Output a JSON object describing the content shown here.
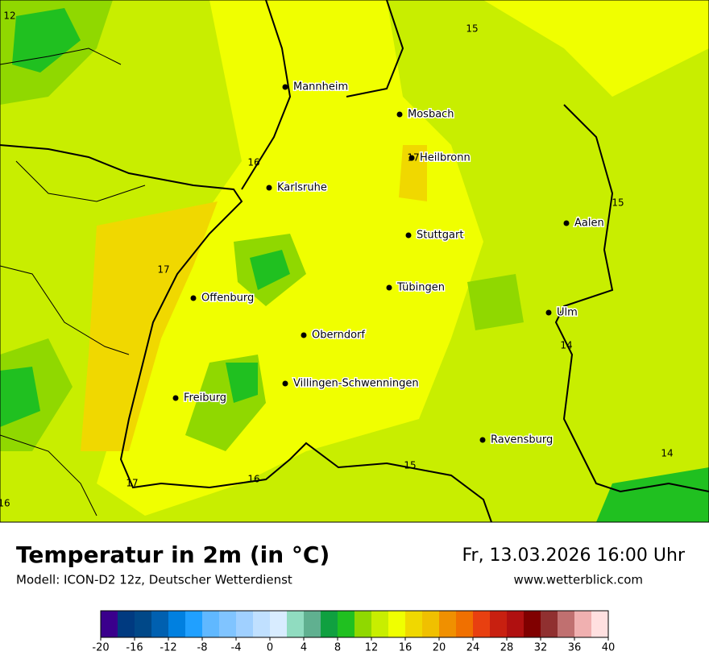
{
  "map": {
    "cities": [
      "Mannheim",
      "Mosbach",
      "Heilbronn",
      "Karlsruhe",
      "Aalen",
      "Stuttgart",
      "Tübingen",
      "Offenburg",
      "Ulm",
      "Oberndorf",
      "Villingen-Schwenningen",
      "Freiburg",
      "Ravensburg"
    ],
    "contour_labels": [
      12,
      15,
      16,
      17,
      15,
      17,
      14,
      15,
      14,
      17,
      16,
      16
    ]
  },
  "footer": {
    "title": "Temperatur in 2m (in °C)",
    "model": "Modell: ICON-D2 12z, Deutscher Wetterdienst",
    "datetime": "Fr, 13.03.2026 16:00 Uhr",
    "site": "www.wetterblick.com"
  },
  "legend": {
    "colors": [
      "#3a008c",
      "#003a80",
      "#004888",
      "#0060b0",
      "#0080e0",
      "#20a0ff",
      "#60b8ff",
      "#80c4ff",
      "#a0d0ff",
      "#c0e0ff",
      "#d8ecff",
      "#90dcc0",
      "#60b090",
      "#10a040",
      "#20c020",
      "#90d800",
      "#c8ee00",
      "#f0ff00",
      "#f0d800",
      "#f0c000",
      "#f09000",
      "#f07000",
      "#e84010",
      "#c82010",
      "#b01010",
      "#800000",
      "#903030",
      "#c07070",
      "#f0b0b0",
      "#ffe0e0"
    ],
    "ticks": [
      -20,
      -16,
      -12,
      -8,
      -4,
      0,
      4,
      8,
      12,
      16,
      20,
      24,
      28,
      32,
      36,
      40
    ]
  }
}
